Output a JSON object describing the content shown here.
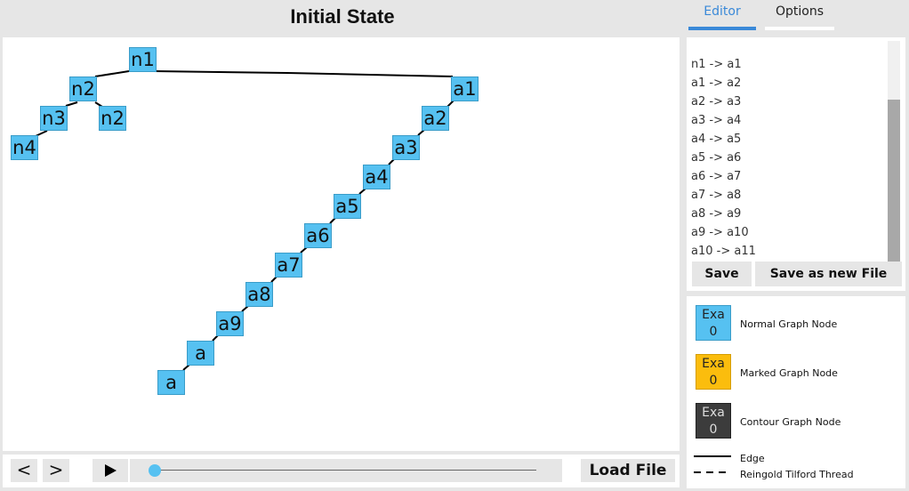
{
  "header": {
    "title": "Initial State"
  },
  "tabs": [
    {
      "label": "Editor",
      "active": true
    },
    {
      "label": "Options",
      "active": false
    }
  ],
  "graph": {
    "nodes": [
      {
        "id": "n1",
        "label": "n1"
      },
      {
        "id": "n2",
        "label": "n2"
      },
      {
        "id": "n3",
        "label": "n3"
      },
      {
        "id": "n2b",
        "label": "n2"
      },
      {
        "id": "n4",
        "label": "n4"
      },
      {
        "id": "a1",
        "label": "a1"
      },
      {
        "id": "a2",
        "label": "a2"
      },
      {
        "id": "a3",
        "label": "a3"
      },
      {
        "id": "a4",
        "label": "a4"
      },
      {
        "id": "a5",
        "label": "a5"
      },
      {
        "id": "a6",
        "label": "a6"
      },
      {
        "id": "a7",
        "label": "a7"
      },
      {
        "id": "a8",
        "label": "a8"
      },
      {
        "id": "a9",
        "label": "a9"
      },
      {
        "id": "a10",
        "label": "a"
      },
      {
        "id": "a11",
        "label": "a"
      }
    ],
    "node_color": "#56c1f1"
  },
  "editor": {
    "lines": [
      "n1 -> a1",
      "a1 -> a2",
      "a2 -> a3",
      "a3 -> a4",
      "a4 -> a5",
      "a5 -> a6",
      "a6 -> a7",
      "a7 -> a8",
      "a8 -> a9",
      "a9 -> a10",
      "a10 -> a11"
    ],
    "save_label": "Save",
    "save_new_label": "Save as new File"
  },
  "legend": {
    "swatch_text_top": "Exa",
    "swatch_text_bottom": "0",
    "normal": {
      "label": "Normal Graph Node",
      "color": "#56c1f1"
    },
    "marked": {
      "label": "Marked Graph Node",
      "color": "#fbbd0d"
    },
    "contour": {
      "label": "Contour Graph Node",
      "color": "#3c3c3c"
    },
    "edge_label": "Edge",
    "thread_label": "Reingold Tilford Thread"
  },
  "controls": {
    "prev_label": "<",
    "next_label": ">",
    "load_label": "Load File"
  }
}
